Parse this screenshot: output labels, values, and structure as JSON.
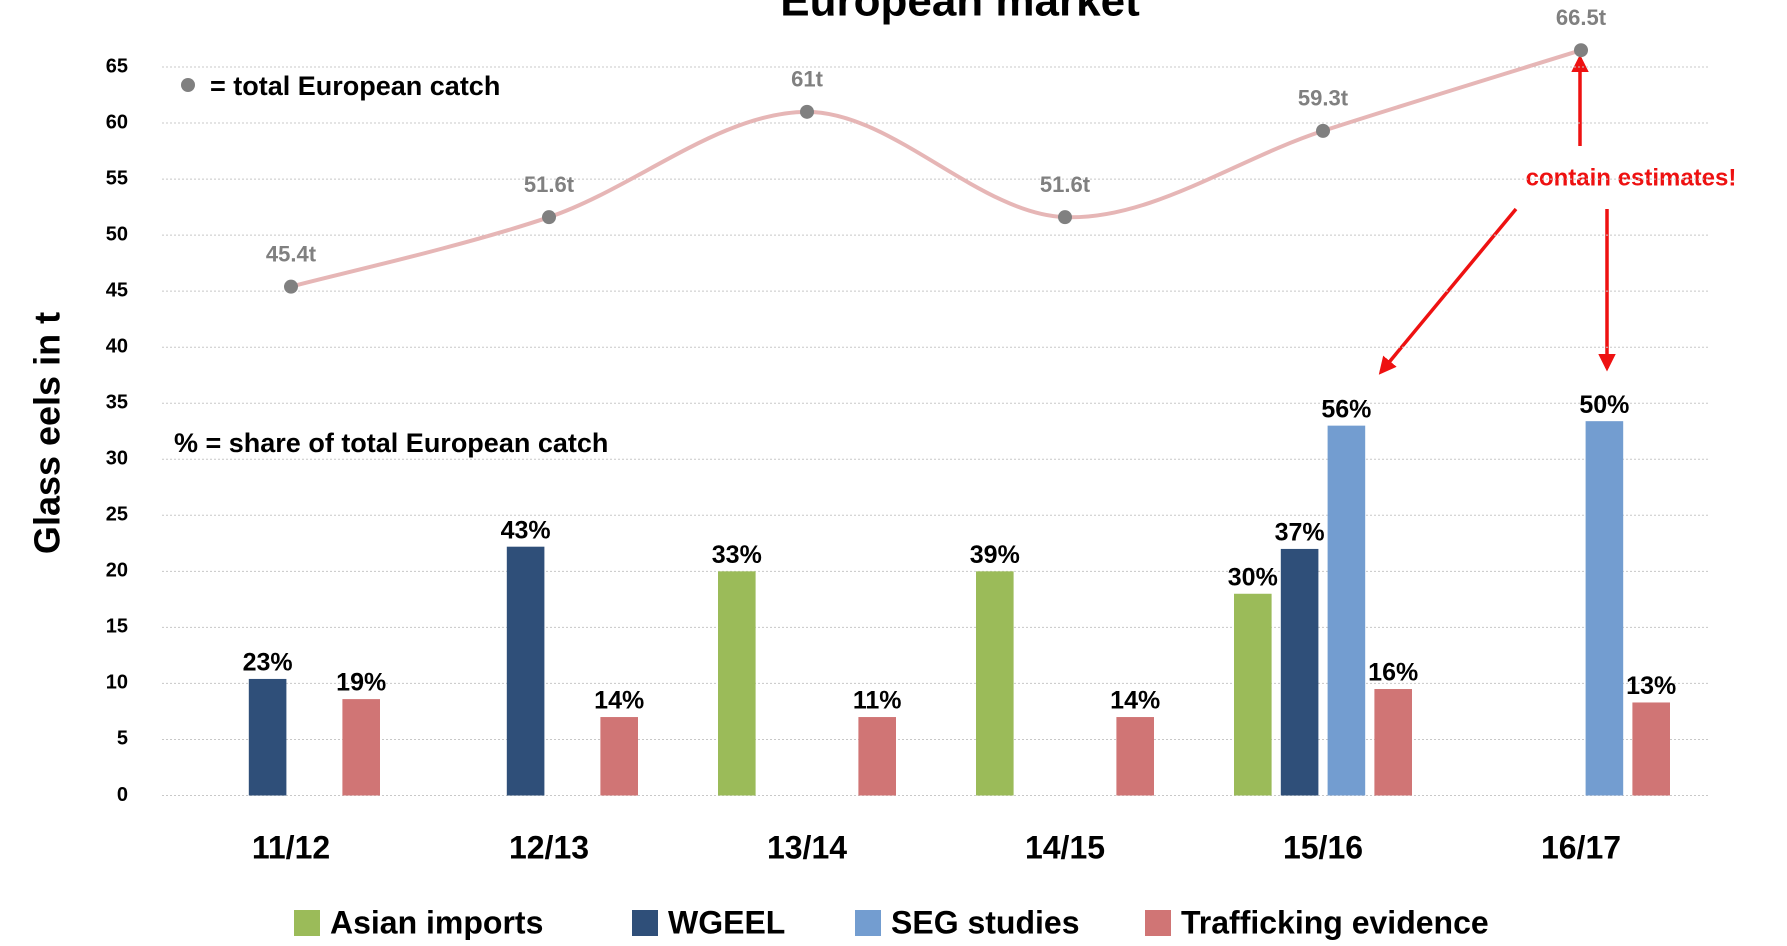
{
  "chart_data": {
    "type": "bar",
    "title": "European market",
    "y_label": "Glass eels in t",
    "annotations": [
      "= total European catch",
      "% = share of total European catch",
      "contain estimates!"
    ],
    "categories": [
      "11/12",
      "12/13",
      "13/14",
      "14/15",
      "15/16",
      "16/17"
    ],
    "ylim": [
      0,
      65
    ],
    "yticks": [
      0,
      5,
      10,
      15,
      20,
      25,
      30,
      35,
      40,
      45,
      50,
      55,
      60,
      65
    ],
    "grid": true,
    "legend": "bottom",
    "series": [
      {
        "name": "Asian imports",
        "color": "#9bbb59",
        "values": [
          null,
          null,
          20,
          20,
          18,
          null
        ],
        "share_labels": [
          null,
          null,
          "33%",
          "39%",
          "30%",
          null
        ]
      },
      {
        "name": "WGEEL",
        "color": "#2f4f79",
        "values": [
          10.4,
          22.2,
          null,
          null,
          22,
          null
        ],
        "share_labels": [
          "23%",
          "43%",
          null,
          null,
          "37%",
          null
        ]
      },
      {
        "name": "SEG studies",
        "color": "#739dd0",
        "values": [
          null,
          null,
          null,
          null,
          33,
          33.4
        ],
        "share_labels": [
          null,
          null,
          null,
          null,
          "56%",
          "50%"
        ]
      },
      {
        "name": "Trafficking evidence",
        "color": "#d07575",
        "values": [
          8.6,
          7,
          7,
          7,
          9.5,
          8.3
        ],
        "share_labels": [
          "19%",
          "14%",
          "11%",
          "14%",
          "16%",
          "13%"
        ]
      }
    ],
    "total_catch": {
      "type": "line",
      "color": "#e6b6b6",
      "marker_color": "#808080",
      "values": [
        45.4,
        51.6,
        61,
        51.6,
        59.3,
        66.5
      ],
      "value_labels": [
        "45.4t",
        "51.6t",
        "61t",
        "51.6t",
        "59.3t",
        "66.5t"
      ]
    }
  }
}
